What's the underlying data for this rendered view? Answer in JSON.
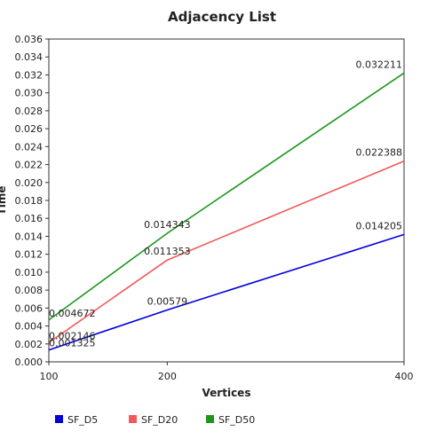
{
  "chart_data": {
    "type": "line",
    "title": "Adjacency List",
    "xlabel": "Vertices",
    "ylabel": "Time",
    "x": [
      100,
      200,
      400
    ],
    "x_tick_labels": [
      "100",
      "200",
      "400"
    ],
    "xlim": [
      100,
      400
    ],
    "ylim": [
      0,
      0.036
    ],
    "y_ticks": [
      0,
      0.002,
      0.004,
      0.006,
      0.008,
      0.01,
      0.012,
      0.014,
      0.016,
      0.018,
      0.02,
      0.022,
      0.024,
      0.026,
      0.028,
      0.03,
      0.032,
      0.034,
      0.036
    ],
    "y_tick_labels": [
      "0.000",
      "0.002",
      "0.004",
      "0.006",
      "0.008",
      "0.010",
      "0.012",
      "0.014",
      "0.016",
      "0.018",
      "0.020",
      "0.022",
      "0.024",
      "0.026",
      "0.028",
      "0.030",
      "0.032",
      "0.034",
      "0.036"
    ],
    "grid": false,
    "legend_position": "bottom-left",
    "series": [
      {
        "name": "SF_D5",
        "color": "#0000dd",
        "values": [
          0.001325,
          0.00579,
          0.014205
        ],
        "labels": [
          "0.001325",
          "0.00579",
          "0.014205"
        ]
      },
      {
        "name": "SF_D20",
        "color": "#f05a5a",
        "values": [
          0.002146,
          0.011353,
          0.022388
        ],
        "labels": [
          "0.002146",
          "0.011353",
          "0.022388"
        ]
      },
      {
        "name": "SF_D50",
        "color": "#1e961e",
        "values": [
          0.004672,
          0.014343,
          0.032211
        ],
        "labels": [
          "0.004672",
          "0.014343",
          "0.032211"
        ]
      }
    ]
  }
}
